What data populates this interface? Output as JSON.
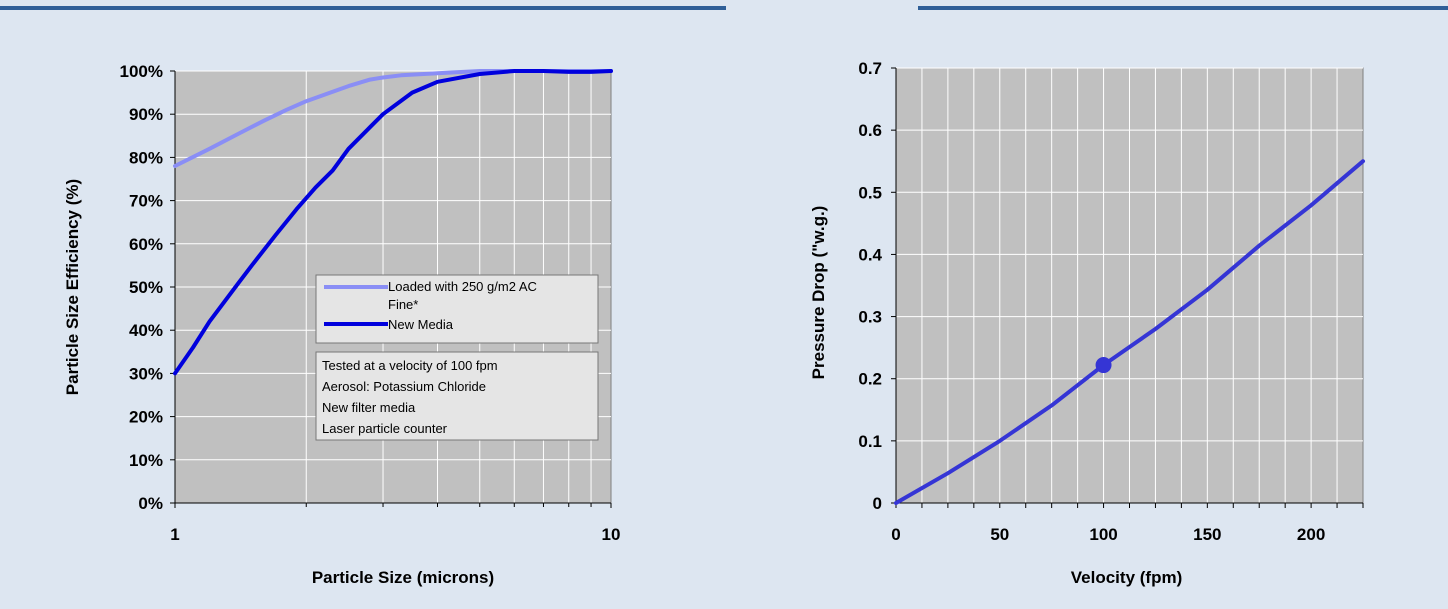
{
  "colors": {
    "background": "#dde6f1",
    "topbar": "#2f5f98",
    "plot_area": "#c0c0c0",
    "grid": "#ffffff",
    "loaded_series": "#8a8ef5",
    "new_media_series": "#0000dd",
    "pressure_series": "#3535d5"
  },
  "chart_data": [
    {
      "type": "line",
      "xscale": "log",
      "xlim": [
        1,
        10
      ],
      "ylim": [
        0,
        100
      ],
      "xlabel": "Particle Size (microns)",
      "ylabel": "Particle Size Efficiency (%)",
      "x_ticks": [
        "1",
        "10"
      ],
      "y_ticks": [
        "0%",
        "10%",
        "20%",
        "30%",
        "40%",
        "50%",
        "60%",
        "70%",
        "80%",
        "90%",
        "100%"
      ],
      "grid": true,
      "legend": {
        "placement": "center-right",
        "entries": [
          "Loaded with 250 g/m2 AC Fine*",
          "New Media"
        ]
      },
      "annotation": [
        "Tested at a velocity of 100 fpm",
        "Aerosol:  Potassium Chloride",
        "New filter media",
        "Laser particle counter"
      ],
      "series": [
        {
          "name": "Loaded with 250 g/m2 AC Fine*",
          "x": [
            1,
            1.2,
            1.4,
            1.6,
            1.8,
            2.0,
            2.2,
            2.3,
            2.5,
            2.8,
            3.0,
            3.3,
            4.0,
            5.0,
            6.0,
            7.0,
            8.0,
            10.0
          ],
          "y": [
            78,
            82,
            85.5,
            88.5,
            91,
            93,
            94.5,
            95.2,
            96.5,
            98,
            98.5,
            99,
            99.5,
            100,
            100,
            100,
            100,
            100
          ]
        },
        {
          "name": "New Media",
          "x": [
            1,
            1.1,
            1.2,
            1.4,
            1.5,
            1.7,
            1.9,
            2.1,
            2.3,
            2.5,
            2.8,
            3.0,
            3.5,
            4.0,
            5.0,
            6.0,
            7.0,
            8.0,
            9.0,
            10.0
          ],
          "y": [
            30,
            36,
            42,
            51,
            55,
            62,
            68,
            73,
            77,
            82,
            87,
            90,
            95,
            97.5,
            99.3,
            100,
            100,
            99.8,
            99.8,
            100
          ]
        }
      ]
    },
    {
      "type": "line",
      "xlim": [
        0,
        225
      ],
      "ylim": [
        0,
        0.7
      ],
      "xlabel": "Velocity (fpm)",
      "ylabel": "Pressure Drop (\"w.g.)",
      "x_ticks": [
        "0",
        "50",
        "100",
        "150",
        "200"
      ],
      "y_ticks": [
        "0",
        "0.1",
        "0.2",
        "0.3",
        "0.4",
        "0.5",
        "0.6",
        "0.7"
      ],
      "grid": true,
      "series": [
        {
          "x": [
            0,
            25,
            50,
            75,
            100,
            125,
            150,
            175,
            200,
            225
          ],
          "y": [
            0,
            0.048,
            0.1,
            0.157,
            0.222,
            0.28,
            0.343,
            0.414,
            0.479,
            0.55
          ]
        }
      ],
      "marker_point": {
        "x": 100,
        "y": 0.222
      }
    }
  ]
}
